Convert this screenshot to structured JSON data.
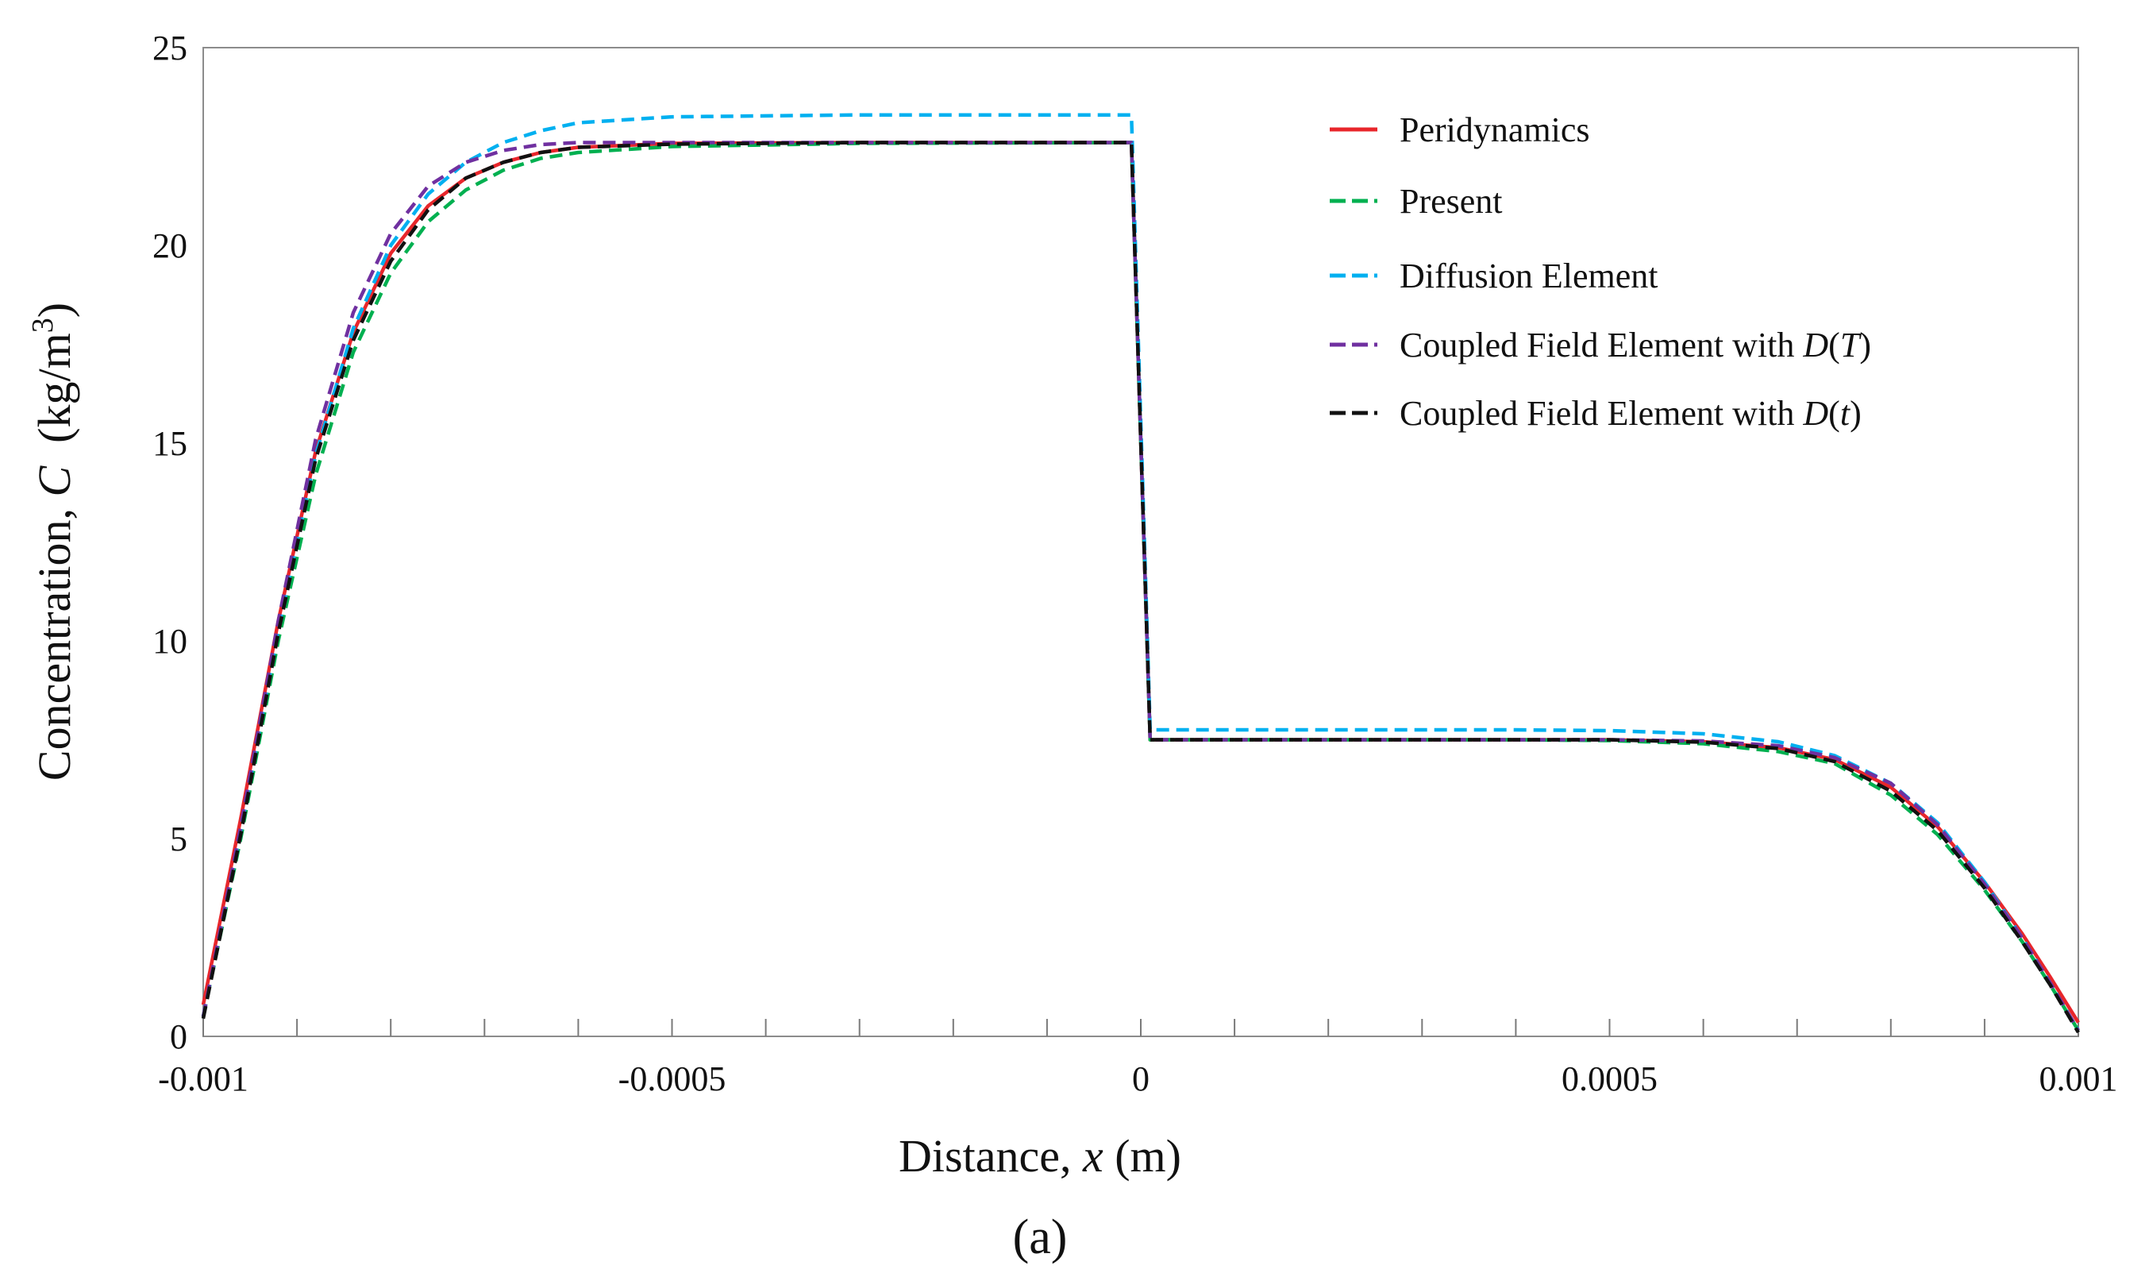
{
  "chart_data": {
    "type": "line",
    "title": "",
    "xlabel": {
      "prefix": "Distance, ",
      "var": "x",
      "suffix": " (m)"
    },
    "ylabel": {
      "prefix": "Concentration, ",
      "var": "C",
      "suffix": "  (kg/m",
      "sup": "3",
      "close": ")"
    },
    "xlim": [
      -0.001,
      0.001
    ],
    "ylim": [
      0,
      25
    ],
    "xticks": [
      -0.001,
      -0.0005,
      0,
      0.0005,
      0.001
    ],
    "xtick_labels": [
      "-0.001",
      "-0.0005",
      "0",
      "0.0005",
      "0.001"
    ],
    "yticks": [
      0,
      5,
      10,
      15,
      20,
      25
    ],
    "ytick_labels": [
      "0",
      "5",
      "10",
      "15",
      "20",
      "25"
    ],
    "x_minor_step": 0.0001,
    "grid": false,
    "legend_position": "top-right",
    "panel_label": "(a)",
    "series": [
      {
        "name": "Peridynamics",
        "legend": [
          {
            "t": "Peridynamics"
          }
        ],
        "color": "#e8262b",
        "style": "solid",
        "points": [
          [
            -0.001,
            0.8
          ],
          [
            -0.00096,
            5.5
          ],
          [
            -0.00092,
            10.5
          ],
          [
            -0.00088,
            14.8
          ],
          [
            -0.00084,
            17.8
          ],
          [
            -0.0008,
            19.8
          ],
          [
            -0.00076,
            21.0
          ],
          [
            -0.00072,
            21.7
          ],
          [
            -0.00068,
            22.1
          ],
          [
            -0.00064,
            22.35
          ],
          [
            -0.0006,
            22.48
          ],
          [
            -0.0005,
            22.58
          ],
          [
            -0.0003,
            22.6
          ],
          [
            -1e-05,
            22.6
          ],
          [
            1e-05,
            7.5
          ],
          [
            0.0002,
            7.5
          ],
          [
            0.0004,
            7.5
          ],
          [
            0.0005,
            7.5
          ],
          [
            0.0006,
            7.45
          ],
          [
            0.00068,
            7.3
          ],
          [
            0.00074,
            7.0
          ],
          [
            0.0008,
            6.3
          ],
          [
            0.00085,
            5.3
          ],
          [
            0.0009,
            3.9
          ],
          [
            0.00094,
            2.6
          ],
          [
            0.00097,
            1.5
          ],
          [
            0.001,
            0.35
          ]
        ]
      },
      {
        "name": "Present",
        "legend": [
          {
            "t": "Present"
          }
        ],
        "color": "#00b050",
        "style": "dashed",
        "points": [
          [
            -0.001,
            0.5
          ],
          [
            -0.00096,
            5.0
          ],
          [
            -0.00092,
            10.0
          ],
          [
            -0.00088,
            14.2
          ],
          [
            -0.00084,
            17.3
          ],
          [
            -0.0008,
            19.3
          ],
          [
            -0.00076,
            20.6
          ],
          [
            -0.00072,
            21.4
          ],
          [
            -0.00068,
            21.9
          ],
          [
            -0.00064,
            22.2
          ],
          [
            -0.0006,
            22.35
          ],
          [
            -0.0005,
            22.5
          ],
          [
            -0.0003,
            22.58
          ],
          [
            -1e-05,
            22.6
          ],
          [
            1e-05,
            7.5
          ],
          [
            0.0002,
            7.5
          ],
          [
            0.0004,
            7.5
          ],
          [
            0.0005,
            7.48
          ],
          [
            0.0006,
            7.4
          ],
          [
            0.00068,
            7.2
          ],
          [
            0.00074,
            6.9
          ],
          [
            0.0008,
            6.1
          ],
          [
            0.00085,
            5.1
          ],
          [
            0.0009,
            3.7
          ],
          [
            0.00094,
            2.4
          ],
          [
            0.00097,
            1.3
          ],
          [
            0.001,
            0.15
          ]
        ]
      },
      {
        "name": "Diffusion Element",
        "legend": [
          {
            "t": "Diffusion Element"
          }
        ],
        "color": "#00b0f0",
        "style": "dashed",
        "points": [
          [
            -0.001,
            0.5
          ],
          [
            -0.00096,
            5.2
          ],
          [
            -0.00092,
            10.3
          ],
          [
            -0.00088,
            14.7
          ],
          [
            -0.00084,
            17.9
          ],
          [
            -0.0008,
            20.0
          ],
          [
            -0.00076,
            21.3
          ],
          [
            -0.00072,
            22.1
          ],
          [
            -0.00068,
            22.6
          ],
          [
            -0.00064,
            22.9
          ],
          [
            -0.0006,
            23.1
          ],
          [
            -0.0005,
            23.25
          ],
          [
            -0.0003,
            23.3
          ],
          [
            -1e-05,
            23.3
          ],
          [
            1e-05,
            7.75
          ],
          [
            0.0002,
            7.75
          ],
          [
            0.0004,
            7.75
          ],
          [
            0.0005,
            7.73
          ],
          [
            0.0006,
            7.65
          ],
          [
            0.00068,
            7.45
          ],
          [
            0.00074,
            7.1
          ],
          [
            0.0008,
            6.4
          ],
          [
            0.00085,
            5.4
          ],
          [
            0.0009,
            3.9
          ],
          [
            0.00094,
            2.5
          ],
          [
            0.00097,
            1.35
          ],
          [
            0.001,
            0.15
          ]
        ]
      },
      {
        "name": "Coupled Field Element with D(T)",
        "legend": [
          {
            "t": "Coupled Field Element with "
          },
          {
            "t": "D",
            "i": true
          },
          {
            "t": "("
          },
          {
            "t": "T",
            "i": true
          },
          {
            "t": ")"
          }
        ],
        "color": "#7030a0",
        "style": "dashed",
        "points": [
          [
            -0.001,
            0.5
          ],
          [
            -0.00096,
            5.3
          ],
          [
            -0.00092,
            10.5
          ],
          [
            -0.00088,
            15.1
          ],
          [
            -0.00084,
            18.3
          ],
          [
            -0.0008,
            20.3
          ],
          [
            -0.00076,
            21.5
          ],
          [
            -0.00072,
            22.1
          ],
          [
            -0.00068,
            22.4
          ],
          [
            -0.00064,
            22.55
          ],
          [
            -0.0006,
            22.6
          ],
          [
            -0.0005,
            22.6
          ],
          [
            -0.0003,
            22.6
          ],
          [
            -1e-05,
            22.6
          ],
          [
            1e-05,
            7.5
          ],
          [
            0.0002,
            7.5
          ],
          [
            0.0004,
            7.5
          ],
          [
            0.0005,
            7.5
          ],
          [
            0.0006,
            7.47
          ],
          [
            0.00068,
            7.35
          ],
          [
            0.00074,
            7.05
          ],
          [
            0.0008,
            6.4
          ],
          [
            0.00085,
            5.35
          ],
          [
            0.0009,
            3.85
          ],
          [
            0.00094,
            2.5
          ],
          [
            0.00097,
            1.35
          ],
          [
            0.001,
            0.15
          ]
        ]
      },
      {
        "name": "Coupled Field Element with D(t)",
        "legend": [
          {
            "t": "Coupled Field Element with "
          },
          {
            "t": "D",
            "i": true
          },
          {
            "t": "("
          },
          {
            "t": "t",
            "i": true
          },
          {
            "t": ")"
          }
        ],
        "color": "#111111",
        "style": "dashed",
        "points": [
          [
            -0.001,
            0.45
          ],
          [
            -0.00096,
            5.1
          ],
          [
            -0.00092,
            10.2
          ],
          [
            -0.00088,
            14.6
          ],
          [
            -0.00084,
            17.6
          ],
          [
            -0.0008,
            19.6
          ],
          [
            -0.00076,
            20.9
          ],
          [
            -0.00072,
            21.7
          ],
          [
            -0.00068,
            22.1
          ],
          [
            -0.00064,
            22.35
          ],
          [
            -0.0006,
            22.48
          ],
          [
            -0.0005,
            22.56
          ],
          [
            -0.0003,
            22.6
          ],
          [
            -1e-05,
            22.6
          ],
          [
            1e-05,
            7.5
          ],
          [
            0.0002,
            7.5
          ],
          [
            0.0004,
            7.5
          ],
          [
            0.0005,
            7.5
          ],
          [
            0.0006,
            7.44
          ],
          [
            0.00068,
            7.28
          ],
          [
            0.00074,
            6.95
          ],
          [
            0.0008,
            6.2
          ],
          [
            0.00085,
            5.2
          ],
          [
            0.0009,
            3.75
          ],
          [
            0.00094,
            2.4
          ],
          [
            0.00097,
            1.3
          ],
          [
            0.001,
            0.1
          ]
        ]
      }
    ]
  }
}
